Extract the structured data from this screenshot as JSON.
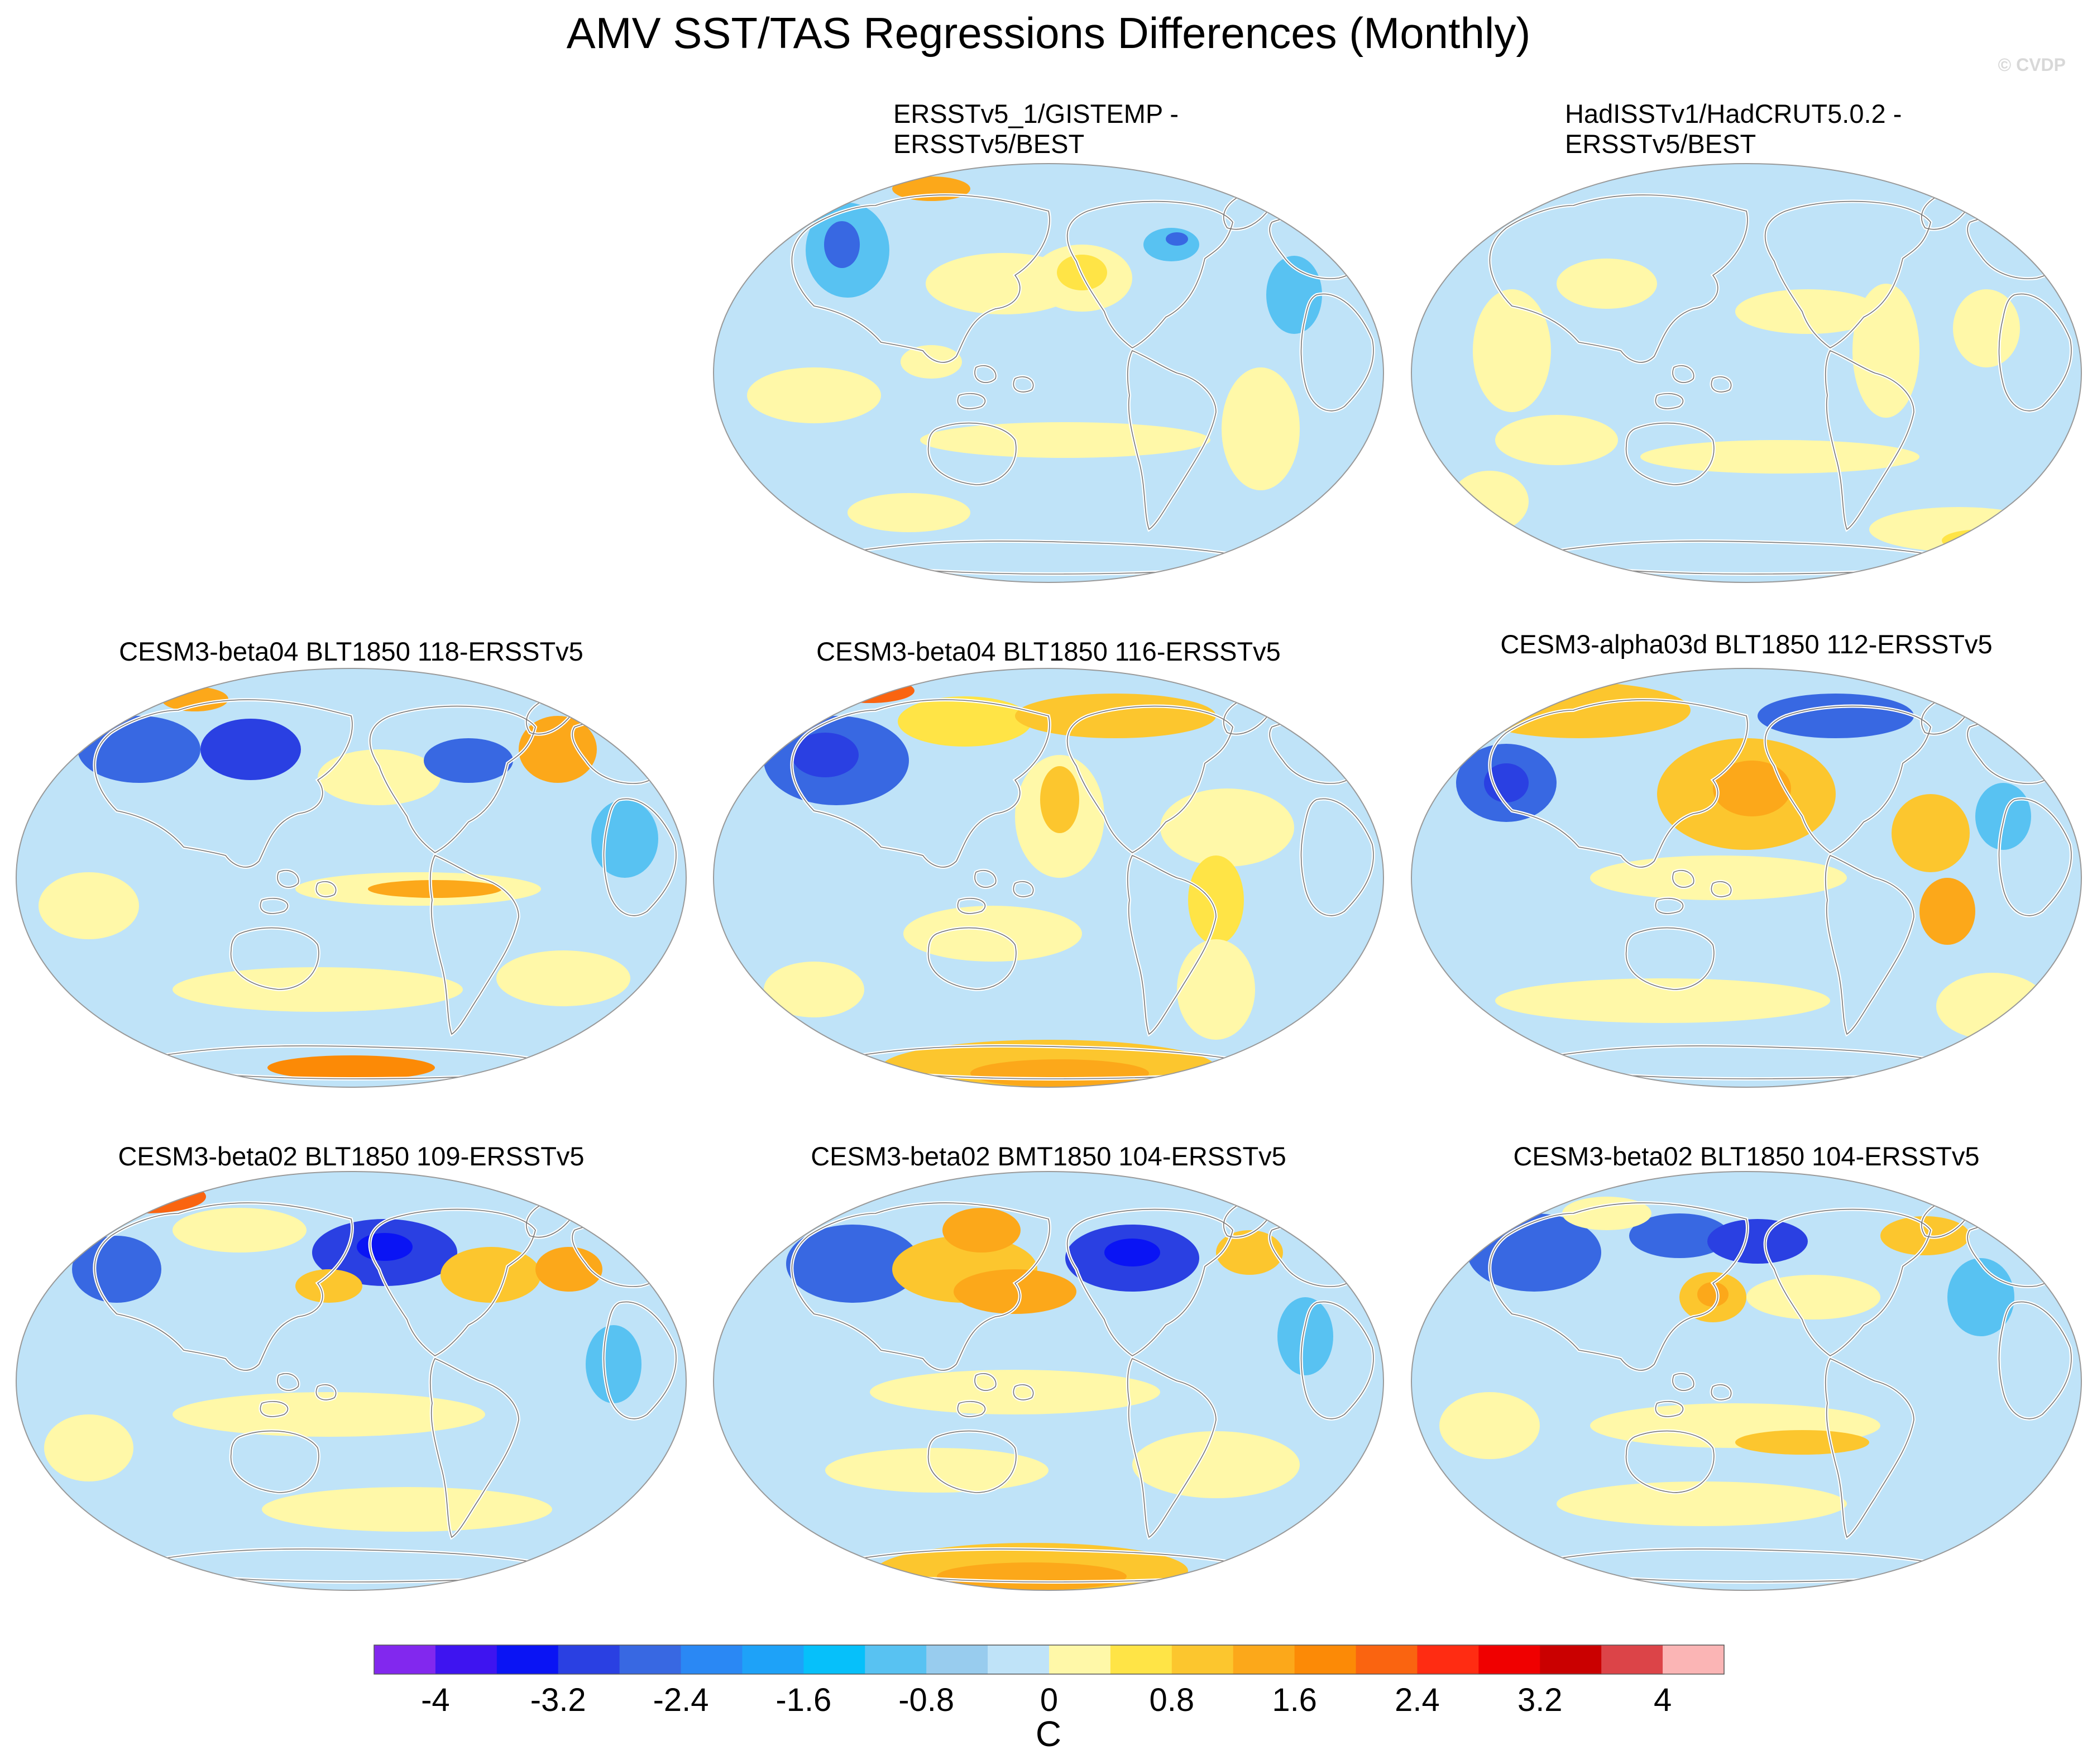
{
  "figure": {
    "title": "AMV SST/TAS Regressions Differences (Monthly)",
    "watermark": "© CVDP"
  },
  "panels": [
    {
      "id": "p2",
      "title_lines": [
        "ERSSTv5_1/GISTEMP -",
        "ERSSTv5/BEST"
      ],
      "position": "row1-col2"
    },
    {
      "id": "p3",
      "title_lines": [
        "HadISSTv1/HadCRUT5.0.2 -",
        "ERSSTv5/BEST"
      ],
      "position": "row1-col3"
    },
    {
      "id": "p4",
      "title_lines": [
        "CESM3-beta04 BLT1850 118-ERSSTv5"
      ],
      "position": "row2-col1"
    },
    {
      "id": "p5",
      "title_lines": [
        "CESM3-beta04 BLT1850 116-ERSSTv5"
      ],
      "position": "row2-col2"
    },
    {
      "id": "p6",
      "title_lines": [
        "CESM3-alpha03d BLT1850 112-ERSSTv5"
      ],
      "position": "row2-col3"
    },
    {
      "id": "p7",
      "title_lines": [
        "CESM3-beta02 BLT1850 109-ERSSTv5"
      ],
      "position": "row3-col1"
    },
    {
      "id": "p8",
      "title_lines": [
        "CESM3-beta02 BMT1850 104-ERSSTv5"
      ],
      "position": "row3-col2"
    },
    {
      "id": "p9",
      "title_lines": [
        "CESM3-beta02 BLT1850 104-ERSSTv5"
      ],
      "position": "row3-col3"
    }
  ],
  "colorbar": {
    "unit": "C",
    "levels": [
      -4.4,
      -4,
      -3.6,
      -3.2,
      -2.8,
      -2.4,
      -2,
      -1.6,
      -1.2,
      -0.8,
      -0.4,
      0,
      0.4,
      0.8,
      1.2,
      1.6,
      2,
      2.4,
      2.8,
      3.2,
      3.6,
      4,
      4.4
    ],
    "colors": [
      "#8228ee",
      "#3e14f0",
      "#0a14f4",
      "#2a40e2",
      "#3868e2",
      "#2a88f4",
      "#1ea2f8",
      "#06c0fa",
      "#58c2f2",
      "#98ccee",
      "#bfe3f8",
      "#fff8a8",
      "#ffe446",
      "#fcc62e",
      "#fca81a",
      "#fc8a06",
      "#fa6410",
      "#ff2c12",
      "#f00000",
      "#ca0000",
      "#dc4448",
      "#fbb5b5"
    ],
    "tick_labels": [
      "-4",
      "-3.2",
      "-2.4",
      "-1.6",
      "-0.8",
      "0",
      "0.8",
      "1.6",
      "2.4",
      "3.2",
      "4"
    ]
  }
}
